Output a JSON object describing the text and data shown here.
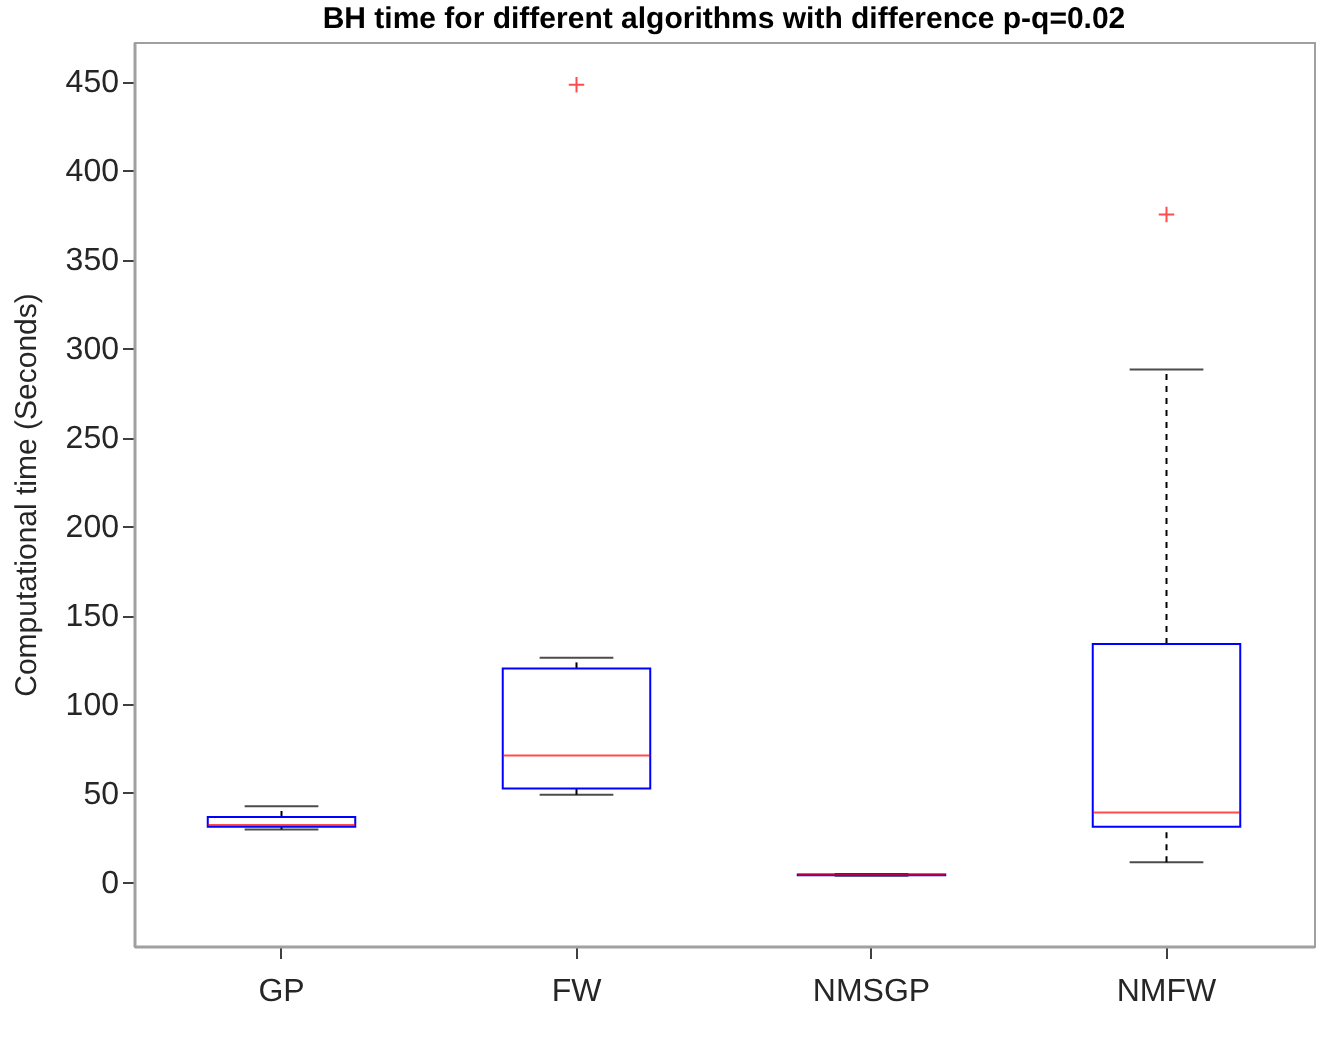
{
  "chart_data": {
    "type": "box",
    "title": "BH time for different algorithms with difference p-q=0.02",
    "ylabel": "Computational time (Seconds)",
    "categories": [
      "GP",
      "FW",
      "NMSGP",
      "NMFW"
    ],
    "boxes": [
      {
        "low": 29.5,
        "q1": 31,
        "median": 32,
        "q3": 36.5,
        "high": 42.5
      },
      {
        "low": 49,
        "q1": 52.5,
        "median": 71,
        "q3": 120,
        "high": 126,
        "outliers": [
          448
        ]
      },
      {
        "low": 3.5,
        "q1": 3.8,
        "median": 4,
        "q3": 4.2,
        "high": 4.5
      },
      {
        "low": 11,
        "q1": 31,
        "median": 39,
        "q3": 133.7,
        "high": 288,
        "outliers": [
          375
        ]
      }
    ],
    "ylim": [
      -36,
      472
    ],
    "yticks": [
      0,
      50,
      100,
      150,
      200,
      250,
      300,
      350,
      400,
      450
    ],
    "line_style": "dashed",
    "marker": "cross"
  }
}
